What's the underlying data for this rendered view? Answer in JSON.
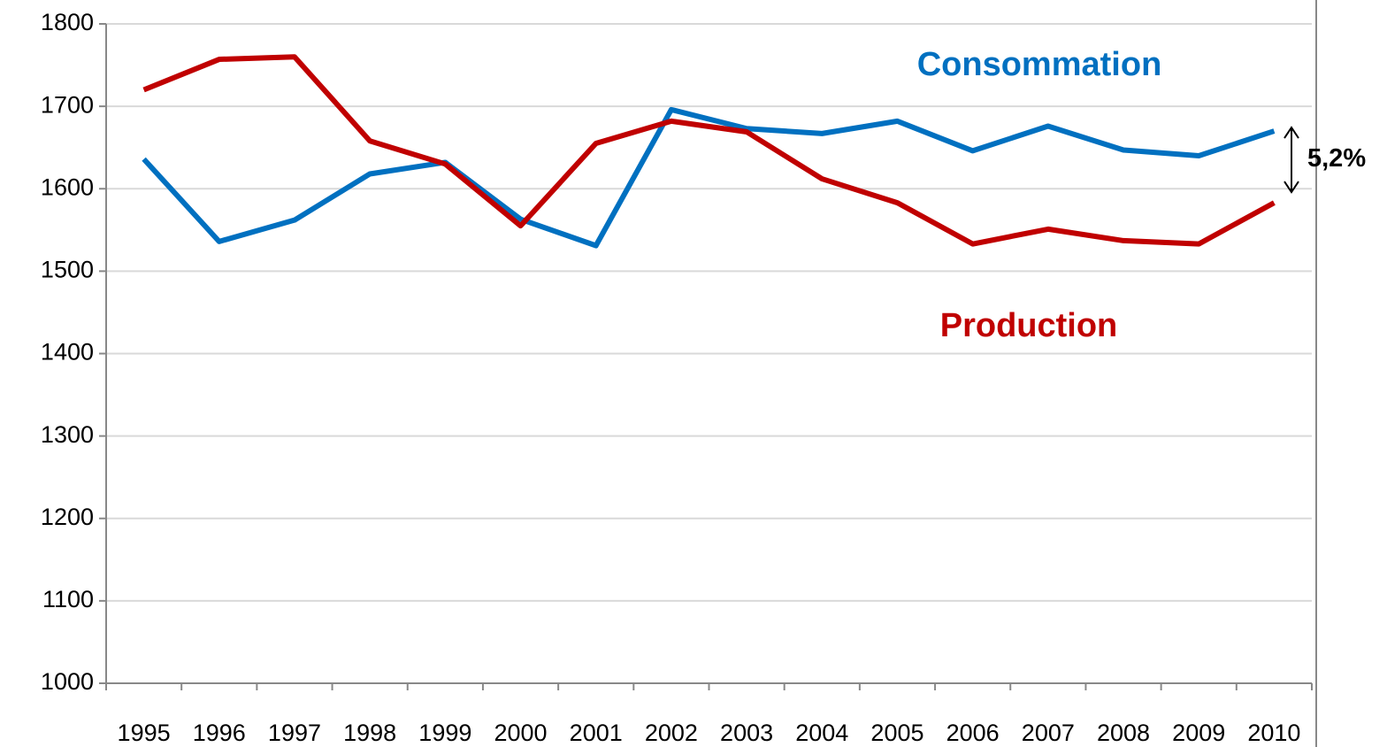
{
  "chart_data": {
    "type": "line",
    "categories": [
      "1995",
      "1996",
      "1997",
      "1998",
      "1999",
      "2000",
      "2001",
      "2002",
      "2003",
      "2004",
      "2005",
      "2006",
      "2007",
      "2008",
      "2009",
      "2010"
    ],
    "series": [
      {
        "name": "Consommation",
        "color": "#0070c0",
        "values": [
          1636,
          1536,
          1562,
          1618,
          1632,
          1563,
          1531,
          1696,
          1673,
          1667,
          1682,
          1646,
          1676,
          1647,
          1640,
          1670
        ]
      },
      {
        "name": "Production",
        "color": "#c00000",
        "values": [
          1720,
          1757,
          1760,
          1658,
          1630,
          1555,
          1655,
          1682,
          1669,
          1612,
          1583,
          1533,
          1551,
          1537,
          1533,
          1583
        ]
      }
    ],
    "annotations": [
      "5,2%"
    ],
    "ylim": [
      1000,
      1800
    ],
    "yticks": [
      1000,
      1100,
      1200,
      1300,
      1400,
      1500,
      1600,
      1700,
      1800
    ],
    "grid": true
  }
}
